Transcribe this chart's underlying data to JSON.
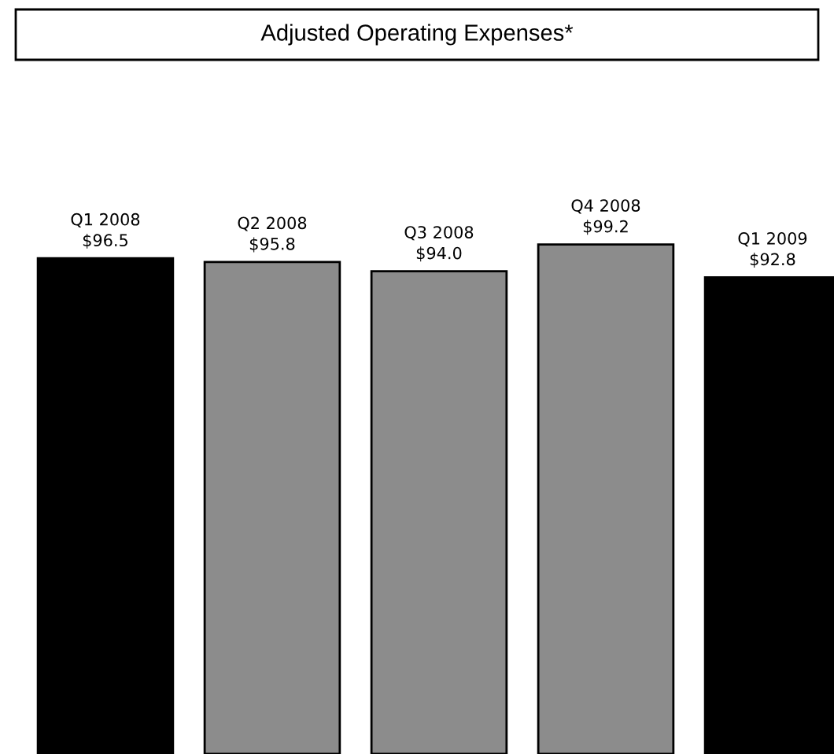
{
  "chart_data": {
    "type": "bar",
    "title": "Adjusted Operating Expenses*",
    "categories": [
      "Q1 2008",
      "Q2 2008",
      "Q3 2008",
      "Q4 2008",
      "Q1 2009"
    ],
    "values": [
      96.5,
      95.8,
      94.0,
      99.2,
      92.8
    ],
    "value_labels": [
      "$96.5",
      "$95.8",
      "$94.0",
      "$99.2",
      "$92.8"
    ],
    "colors": [
      "#000000",
      "#8c8c8c",
      "#8c8c8c",
      "#8c8c8c",
      "#000000"
    ],
    "grid": false,
    "legend": false
  }
}
